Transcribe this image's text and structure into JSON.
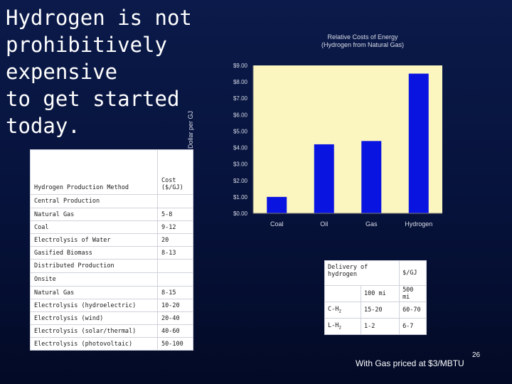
{
  "slide": {
    "title": "Hydrogen is not\nprohibitively\nexpensive\nto get started\ntoday.",
    "footnote": "With Gas priced at $3/MBTU",
    "page_number": "26"
  },
  "chart_data": {
    "type": "bar",
    "title_lines": [
      "Relative Costs of Energy",
      "(Hydrogen from Natural Gas)"
    ],
    "ylabel": "US Dollar per GJ",
    "categories": [
      "Coal",
      "Oil",
      "Gas",
      "Hydrogen"
    ],
    "values": [
      1.0,
      4.2,
      4.4,
      8.5
    ],
    "ylim": [
      0,
      9
    ],
    "yticks": [
      "$0.00",
      "$1.00",
      "$2.00",
      "$3.00",
      "$4.00",
      "$5.00",
      "$6.00",
      "$7.00",
      "$8.00",
      "$9.00"
    ],
    "colors": {
      "bar": "#0a14e0",
      "plot_bg": "#fbf6c0",
      "axis": "#7a7a7a"
    },
    "grid": false
  },
  "production_table": {
    "header": {
      "method": "Hydrogen Production Method",
      "cost": "Cost\n($/GJ)"
    },
    "central_label": "Central Production",
    "central": [
      {
        "method": "Natural Gas",
        "cost": "5-8"
      },
      {
        "method": "Coal",
        "cost": "9-12"
      },
      {
        "method": "Electrolysis of Water",
        "cost": "20"
      },
      {
        "method": "Gasified Biomass",
        "cost": "8-13"
      }
    ],
    "distributed_label": "Distributed Production",
    "onsite_label": "Onsite",
    "distributed": [
      {
        "method": "Natural Gas",
        "cost": "8-15"
      },
      {
        "method": "Electrolysis (hydroelectric)",
        "cost": "10-20"
      },
      {
        "method": "Electrolysis (wind)",
        "cost": "20-40"
      },
      {
        "method": "Electrolysis (solar/thermal)",
        "cost": "40-60"
      },
      {
        "method": "Electrolysis (photovoltaic)",
        "cost": "50-100"
      }
    ]
  },
  "delivery_table": {
    "header": "Delivery of hydrogen",
    "unit": "$/GJ",
    "distances": [
      "100 mi",
      "500 mi"
    ],
    "rows": [
      {
        "kind": "C-H",
        "sub": "2",
        "d100": "15-20",
        "d500": "60-70"
      },
      {
        "kind": "L-H",
        "sub": "2",
        "d100": "1-2",
        "d500": "6-7"
      }
    ]
  }
}
